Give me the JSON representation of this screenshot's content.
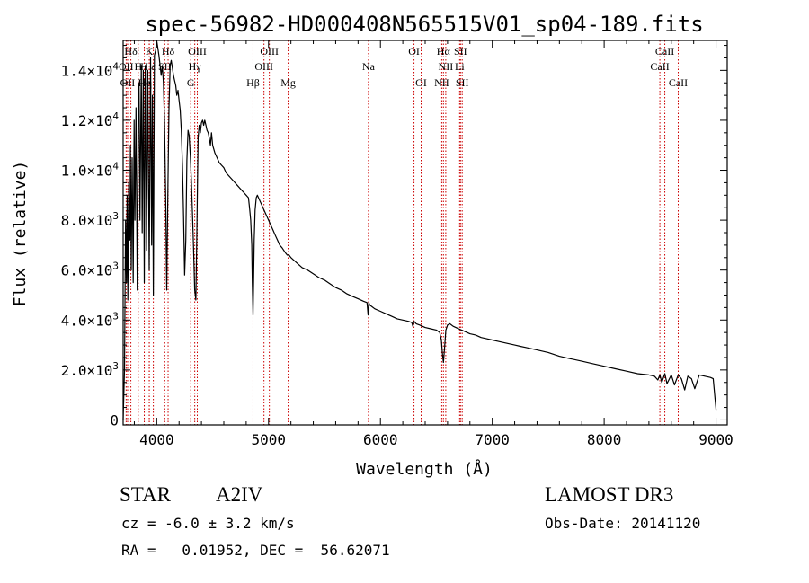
{
  "chart_data": {
    "type": "line",
    "title": "spec-56982-HD000408N565515V01_sp04-189.fits",
    "xlabel": "Wavelength (Å)",
    "ylabel": "Flux (relative)",
    "xlim": [
      3700,
      9100
    ],
    "ylim": [
      -200,
      15200
    ],
    "x_ticks": [
      4000,
      5000,
      6000,
      7000,
      8000,
      9000
    ],
    "y_ticks": [
      {
        "value": 0,
        "mantissa": "0",
        "exponent": ""
      },
      {
        "value": 2000,
        "mantissa": "2.0×10",
        "exponent": "3"
      },
      {
        "value": 4000,
        "mantissa": "4.0×10",
        "exponent": "3"
      },
      {
        "value": 6000,
        "mantissa": "6.0×10",
        "exponent": "3"
      },
      {
        "value": 8000,
        "mantissa": "8.0×10",
        "exponent": "3"
      },
      {
        "value": 10000,
        "mantissa": "1.0×10",
        "exponent": "4"
      },
      {
        "value": 12000,
        "mantissa": "1.2×10",
        "exponent": "4"
      },
      {
        "value": 14000,
        "mantissa": "1.4×10",
        "exponent": "4"
      }
    ],
    "series": [
      {
        "name": "flux",
        "x": [
          3700,
          3712,
          3722,
          3730,
          3735,
          3742,
          3750,
          3760,
          3765,
          3772,
          3780,
          3790,
          3798,
          3805,
          3815,
          3826,
          3835,
          3842,
          3850,
          3862,
          3870,
          3880,
          3889,
          3898,
          3910,
          3920,
          3933,
          3945,
          3955,
          3962,
          3970,
          3980,
          3990,
          4000,
          4010,
          4020,
          4030,
          4040,
          4050,
          4060,
          4070,
          4080,
          4090,
          4101,
          4110,
          4120,
          4130,
          4140,
          4150,
          4160,
          4170,
          4180,
          4190,
          4200,
          4210,
          4220,
          4230,
          4240,
          4250,
          4260,
          4270,
          4280,
          4290,
          4300,
          4310,
          4320,
          4330,
          4340,
          4350,
          4360,
          4370,
          4380,
          4390,
          4400,
          4410,
          4420,
          4430,
          4440,
          4450,
          4460,
          4470,
          4480,
          4490,
          4500,
          4520,
          4540,
          4560,
          4580,
          4600,
          4620,
          4640,
          4660,
          4680,
          4700,
          4720,
          4740,
          4760,
          4780,
          4800,
          4820,
          4830,
          4840,
          4850,
          4855,
          4861,
          4866,
          4872,
          4880,
          4890,
          4900,
          4920,
          4940,
          4960,
          4980,
          5000,
          5020,
          5040,
          5060,
          5080,
          5100,
          5120,
          5150,
          5167,
          5183,
          5200,
          5250,
          5300,
          5350,
          5400,
          5450,
          5500,
          5550,
          5600,
          5650,
          5700,
          5750,
          5800,
          5850,
          5880,
          5890,
          5896,
          5905,
          5920,
          5950,
          6000,
          6050,
          6100,
          6150,
          6200,
          6250,
          6280,
          6290,
          6300,
          6320,
          6350,
          6400,
          6450,
          6500,
          6530,
          6545,
          6555,
          6563,
          6572,
          6585,
          6600,
          6620,
          6650,
          6700,
          6750,
          6800,
          6850,
          6900,
          6950,
          7000,
          7050,
          7100,
          7150,
          7200,
          7250,
          7300,
          7400,
          7500,
          7600,
          7700,
          7800,
          7900,
          8000,
          8100,
          8200,
          8300,
          8400,
          8450,
          8480,
          8498,
          8515,
          8542,
          8562,
          8600,
          8628,
          8662,
          8690,
          8720,
          8748,
          8780,
          8810,
          8850,
          8900,
          8950,
          8975,
          8990,
          9000
        ],
        "y": [
          0,
          2000,
          8000,
          5500,
          9000,
          4800,
          9500,
          7200,
          11000,
          6000,
          10500,
          5500,
          12000,
          8000,
          12500,
          5200,
          12000,
          13500,
          8000,
          14200,
          7500,
          14000,
          5500,
          14200,
          6800,
          14000,
          6000,
          14500,
          7000,
          13000,
          5000,
          14600,
          14800,
          15200,
          14900,
          14600,
          14200,
          13800,
          14200,
          13500,
          12000,
          9000,
          5200,
          9500,
          12500,
          14200,
          14400,
          14100,
          13800,
          13600,
          13400,
          13000,
          13200,
          12800,
          12400,
          11600,
          10200,
          8200,
          5800,
          7200,
          10400,
          11600,
          11400,
          10600,
          9600,
          8200,
          6800,
          5200,
          4800,
          7800,
          11300,
          11800,
          11500,
          11900,
          12000,
          11800,
          12000,
          11800,
          11600,
          11500,
          11300,
          11000,
          11500,
          11000,
          10700,
          10500,
          10300,
          10200,
          10100,
          9900,
          9800,
          9700,
          9600,
          9500,
          9400,
          9300,
          9200,
          9100,
          9000,
          8900,
          8500,
          8000,
          7000,
          5500,
          4200,
          5500,
          7200,
          8400,
          8900,
          9000,
          8800,
          8600,
          8400,
          8200,
          8000,
          7800,
          7600,
          7400,
          7200,
          7000,
          6900,
          6700,
          6600,
          6600,
          6500,
          6300,
          6100,
          6000,
          5850,
          5700,
          5600,
          5450,
          5300,
          5200,
          5050,
          4950,
          4850,
          4750,
          4700,
          4200,
          4700,
          4600,
          4550,
          4450,
          4350,
          4250,
          4150,
          4050,
          4000,
          3950,
          3900,
          3750,
          3950,
          3850,
          3800,
          3700,
          3650,
          3600,
          3500,
          3200,
          2600,
          2300,
          2800,
          3600,
          3800,
          3850,
          3750,
          3650,
          3550,
          3450,
          3400,
          3300,
          3250,
          3200,
          3150,
          3100,
          3050,
          3000,
          2950,
          2900,
          2800,
          2700,
          2550,
          2450,
          2350,
          2250,
          2150,
          2050,
          1950,
          1850,
          1800,
          1750,
          1600,
          1800,
          1500,
          1850,
          1450,
          1800,
          1400,
          1800,
          1650,
          1200,
          1750,
          1650,
          1250,
          1800,
          1750,
          1700,
          1650,
          900,
          400
        ]
      }
    ],
    "line_groups": [
      {
        "row": 1,
        "lines": [
          {
            "label": "Hδ",
            "wavelength": 3769
          },
          {
            "label": "K",
            "wavelength": 3934
          },
          {
            "label": "Hδ",
            "wavelength": 4102
          },
          {
            "label": "OIII",
            "wavelength": 4363
          },
          {
            "label": "OIII",
            "wavelength": 5007
          },
          {
            "label": "OI",
            "wavelength": 6300
          },
          {
            "label": "Hα",
            "wavelength": 6563
          },
          {
            "label": "SII",
            "wavelength": 6716
          },
          {
            "label": "CaII",
            "wavelength": 8542
          }
        ]
      },
      {
        "row": 2,
        "lines": [
          {
            "label": "OII",
            "wavelength": 3727
          },
          {
            "label": "H",
            "wavelength": 3835
          },
          {
            "label": "H",
            "wavelength": 3889
          },
          {
            "label": "ε",
            "wavelength": 3970
          },
          {
            "label": "SII",
            "wavelength": 4072
          },
          {
            "label": "Hγ",
            "wavelength": 4340
          },
          {
            "label": "OIII",
            "wavelength": 4959
          },
          {
            "label": "Na",
            "wavelength": 5893
          },
          {
            "label": "NII",
            "wavelength": 6584
          },
          {
            "label": "Li",
            "wavelength": 6708
          },
          {
            "label": "CaII",
            "wavelength": 8498
          }
        ]
      },
      {
        "row": 3,
        "lines": [
          {
            "label": "OII",
            "wavelength": 3740
          },
          {
            "label": "He",
            "wavelength": 3889
          },
          {
            "label": "η",
            "wavelength": 3933
          },
          {
            "label": "G",
            "wavelength": 4304
          },
          {
            "label": "Hβ",
            "wavelength": 4861
          },
          {
            "label": "Mg",
            "wavelength": 5175
          },
          {
            "label": "OI",
            "wavelength": 6364
          },
          {
            "label": "NII",
            "wavelength": 6548
          },
          {
            "label": "SII",
            "wavelength": 6731
          },
          {
            "label": "CaII",
            "wavelength": 8662
          }
        ]
      }
    ],
    "line_color": "#000000",
    "marker_color": "#cc0000"
  },
  "info": {
    "object_class": "STAR",
    "subclass": "A2IV",
    "survey": "LAMOST DR3",
    "redshift": "cz = -6.0 ± 3.2 km/s",
    "obs_date": "Obs-Date: 20141120",
    "coords": "RA =   0.01952, DEC =  56.62071"
  }
}
